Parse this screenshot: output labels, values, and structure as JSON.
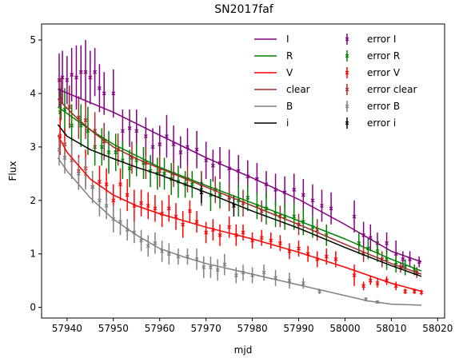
{
  "chart_data": {
    "type": "scatter",
    "title": "SN2017faf",
    "xlabel": "mjd",
    "ylabel": "Flux",
    "xlim": [
      57934.5,
      58021.5
    ],
    "ylim": [
      -0.2,
      5.3
    ],
    "xticks": [
      57940,
      57950,
      57960,
      57970,
      57980,
      57990,
      58000,
      58010,
      58020
    ],
    "yticks": [
      0,
      1,
      2,
      3,
      4,
      5
    ],
    "grid": false,
    "legend": {
      "location": "top-right",
      "columns": 2
    },
    "series": [
      {
        "name": "I",
        "error_name": "error I",
        "color": "#800080",
        "curve": {
          "x": [
            57938,
            57950,
            57960,
            57970,
            57980,
            57990,
            58000,
            58010,
            58016.5
          ],
          "y": [
            4.08,
            3.65,
            3.22,
            2.8,
            2.42,
            2.02,
            1.55,
            1.05,
            0.85
          ]
        },
        "points": {
          "x": [
            57938.3,
            57939.0,
            57940.0,
            57941.0,
            57942.0,
            57943.0,
            57944.0,
            57945.0,
            57946.0,
            57947.0,
            57948.0,
            57950.0,
            57952.0,
            57953.5,
            57955.0,
            57957.0,
            57958.5,
            57960.0,
            57961.5,
            57963.0,
            57964.5,
            57966.0,
            57968.0,
            57970.0,
            57971.5,
            57973.0,
            57975.0,
            57977.0,
            57979.0,
            57981.0,
            57983.0,
            57985.0,
            57987.0,
            57989.0,
            57991.0,
            57993.0,
            57995.0,
            57997.0,
            58002.0,
            58004.0,
            58005.5,
            58007.0,
            58009.0,
            58011.0,
            58012.5,
            58014.0,
            58016.0
          ],
          "y": [
            4.25,
            4.3,
            4.25,
            4.35,
            4.3,
            4.4,
            4.4,
            4.3,
            4.4,
            4.1,
            4.0,
            4.0,
            3.3,
            3.35,
            3.3,
            3.2,
            3.0,
            3.05,
            3.2,
            3.05,
            2.9,
            3.0,
            2.95,
            2.75,
            2.65,
            2.7,
            2.6,
            2.55,
            2.45,
            2.4,
            2.3,
            2.2,
            2.15,
            2.2,
            2.1,
            2.0,
            1.9,
            1.85,
            1.7,
            1.35,
            1.3,
            1.2,
            1.2,
            1.0,
            0.9,
            0.9,
            0.85
          ],
          "err": [
            0.5,
            0.5,
            0.45,
            0.5,
            0.6,
            0.5,
            0.6,
            0.5,
            0.45,
            0.45,
            0.4,
            0.45,
            0.4,
            0.35,
            0.4,
            0.35,
            0.35,
            0.35,
            0.4,
            0.35,
            0.3,
            0.35,
            0.35,
            0.35,
            0.3,
            0.3,
            0.35,
            0.3,
            0.3,
            0.3,
            0.25,
            0.3,
            0.3,
            0.3,
            0.3,
            0.3,
            0.3,
            0.3,
            0.3,
            0.25,
            0.25,
            0.2,
            0.2,
            0.25,
            0.15,
            0.15,
            0.1
          ]
        }
      },
      {
        "name": "R",
        "error_name": "error R",
        "color": "#008000",
        "curve": {
          "x": [
            57938,
            57945,
            57950,
            57960,
            57970,
            57980,
            57990,
            58000,
            58010,
            58016.5
          ],
          "y": [
            3.75,
            3.32,
            3.05,
            2.62,
            2.28,
            1.95,
            1.62,
            1.28,
            0.9,
            0.68
          ]
        },
        "points": {
          "x": [
            57938.5,
            57939.5,
            57941.0,
            57943.0,
            57944.5,
            57946.0,
            57947.5,
            57949.0,
            57950.5,
            57952.0,
            57953.5,
            57955.0,
            57956.5,
            57958.0,
            57959.5,
            57961.0,
            57962.5,
            57964.0,
            57965.5,
            57967.0,
            57969.0,
            57971.0,
            57973.0,
            57975.0,
            57977.0,
            57979.0,
            57981.0,
            57983.0,
            57985.0,
            57987.0,
            57989.0,
            57991.0,
            57993.0,
            57996.0,
            58003.0,
            58005.0,
            58007.0,
            58009.0,
            58011.0,
            58013.0,
            58015.0
          ],
          "y": [
            3.65,
            3.7,
            3.4,
            3.4,
            3.3,
            3.0,
            3.0,
            2.9,
            2.9,
            2.75,
            2.6,
            2.75,
            2.7,
            2.55,
            2.5,
            2.5,
            2.4,
            2.35,
            2.3,
            2.3,
            2.2,
            2.1,
            2.1,
            2.05,
            2.0,
            2.05,
            1.9,
            1.85,
            1.75,
            1.7,
            1.7,
            1.6,
            1.5,
            1.35,
            1.2,
            1.1,
            1.05,
            0.9,
            0.8,
            0.75,
            0.7
          ],
          "err": [
            0.45,
            0.4,
            0.4,
            0.4,
            0.45,
            0.35,
            0.35,
            0.4,
            0.35,
            0.35,
            0.35,
            0.3,
            0.3,
            0.3,
            0.3,
            0.3,
            0.3,
            0.3,
            0.25,
            0.25,
            0.3,
            0.3,
            0.25,
            0.25,
            0.3,
            0.25,
            0.25,
            0.3,
            0.25,
            0.25,
            0.25,
            0.25,
            0.2,
            0.2,
            0.2,
            0.2,
            0.2,
            0.2,
            0.15,
            0.15,
            0.1
          ]
        }
      },
      {
        "name": "V",
        "error_name": "error V",
        "color": "#ff0000",
        "curve": {
          "x": [
            57938,
            57940,
            57945,
            57950,
            57955,
            57960,
            57970,
            57980,
            57990,
            58000,
            58010,
            58016.5
          ],
          "y": [
            3.22,
            2.9,
            2.4,
            2.1,
            1.9,
            1.75,
            1.5,
            1.28,
            1.03,
            0.75,
            0.45,
            0.3
          ]
        },
        "points": {
          "x": [
            57938.5,
            57939.5,
            57941.0,
            57942.5,
            57944.0,
            57945.5,
            57947.0,
            57948.5,
            57950.0,
            57951.5,
            57953.0,
            57954.5,
            57956.0,
            57957.5,
            57959.0,
            57960.5,
            57962.0,
            57963.5,
            57965.0,
            57966.5,
            57968.0,
            57970.0,
            57971.5,
            57973.0,
            57975.0,
            57976.5,
            57978.0,
            57980.0,
            57982.0,
            57984.0,
            57986.0,
            57988.0,
            57990.0,
            57992.0,
            57994.0,
            57996.0,
            57998.0,
            58002.0,
            58004.0,
            58005.5,
            58007.0,
            58009.0,
            58011.0,
            58013.0,
            58015.0,
            58016.5
          ],
          "y": [
            3.2,
            3.05,
            2.75,
            2.55,
            2.6,
            2.25,
            2.35,
            2.3,
            2.0,
            2.3,
            2.1,
            1.9,
            1.95,
            1.9,
            1.85,
            1.75,
            1.85,
            1.7,
            1.55,
            1.8,
            1.6,
            1.4,
            1.45,
            1.35,
            1.5,
            1.35,
            1.4,
            1.25,
            1.3,
            1.25,
            1.2,
            1.05,
            1.1,
            1.0,
            0.9,
            0.95,
            0.9,
            0.6,
            0.4,
            0.5,
            0.45,
            0.5,
            0.4,
            0.3,
            0.3,
            0.28
          ],
          "err": [
            0.35,
            0.3,
            0.3,
            0.3,
            0.35,
            0.3,
            0.3,
            0.3,
            0.3,
            0.3,
            0.3,
            0.3,
            0.25,
            0.25,
            0.25,
            0.25,
            0.25,
            0.25,
            0.25,
            0.2,
            0.2,
            0.2,
            0.2,
            0.2,
            0.2,
            0.2,
            0.15,
            0.15,
            0.15,
            0.15,
            0.15,
            0.15,
            0.15,
            0.15,
            0.15,
            0.15,
            0.15,
            0.2,
            0.08,
            0.08,
            0.08,
            0.08,
            0.08,
            0.05,
            0.05,
            0.05
          ]
        }
      },
      {
        "name": "clear",
        "error_name": "error clear",
        "color": "#a52a2a",
        "curve": {
          "x": [
            57938,
            57942,
            57946,
            57950,
            57955,
            57960,
            57970,
            57980,
            57990,
            58000,
            58010,
            58016.5
          ],
          "y": [
            3.9,
            3.55,
            3.25,
            3.0,
            2.78,
            2.6,
            2.25,
            1.9,
            1.55,
            1.18,
            0.82,
            0.62
          ]
        },
        "points": {
          "x": [
            57938.7,
            57940.5,
            57942.5,
            57944.0,
            57946.0,
            57948.0,
            57951.0,
            57954.0,
            57957.0,
            57960.0,
            57963.0,
            57966.0,
            57969.0,
            57972.0,
            57975.0,
            57978.0,
            57982.0,
            57986.0,
            57990.0,
            57994.0,
            58004.0,
            58008.0,
            58012.0,
            58015.5
          ],
          "y": [
            3.9,
            3.75,
            3.55,
            3.5,
            3.3,
            3.1,
            2.95,
            2.8,
            2.7,
            2.55,
            2.5,
            2.4,
            2.3,
            2.2,
            2.05,
            1.95,
            1.8,
            1.7,
            1.55,
            1.45,
            1.0,
            0.9,
            0.75,
            0.65
          ],
          "err": [
            0.4,
            0.4,
            0.4,
            0.35,
            0.35,
            0.35,
            0.3,
            0.3,
            0.3,
            0.3,
            0.25,
            0.25,
            0.25,
            0.25,
            0.25,
            0.25,
            0.2,
            0.2,
            0.2,
            0.2,
            0.15,
            0.15,
            0.1,
            0.1
          ]
        }
      },
      {
        "name": "B",
        "error_name": "error B",
        "color": "#808080",
        "curve": {
          "x": [
            57938,
            57940,
            57945,
            57950,
            57955,
            57960,
            57965,
            57970,
            57980,
            57990,
            58000,
            58005,
            58010,
            58016.5
          ],
          "y": [
            2.8,
            2.55,
            2.05,
            1.65,
            1.35,
            1.1,
            0.95,
            0.82,
            0.62,
            0.42,
            0.22,
            0.12,
            0.06,
            0.04
          ]
        },
        "points": {
          "x": [
            57938.3,
            57939.5,
            57941.0,
            57942.5,
            57944.0,
            57945.5,
            57947.0,
            57948.5,
            57950.0,
            57951.5,
            57953.0,
            57954.5,
            57956.0,
            57957.5,
            57959.0,
            57960.5,
            57962.0,
            57964.0,
            57966.0,
            57968.0,
            57969.5,
            57971.0,
            57972.5,
            57974.0,
            57976.5,
            57978.0,
            57980.0,
            57982.5,
            57985.0,
            57988.0,
            57991.0,
            57994.5,
            58004.5,
            58007.0
          ],
          "y": [
            2.95,
            2.8,
            2.75,
            2.5,
            2.5,
            2.25,
            2.0,
            1.9,
            1.65,
            1.6,
            1.45,
            1.4,
            1.25,
            1.15,
            1.2,
            1.05,
            1.0,
            0.95,
            0.95,
            0.9,
            0.75,
            0.75,
            0.7,
            0.8,
            0.6,
            0.65,
            0.6,
            0.65,
            0.55,
            0.5,
            0.45,
            0.3,
            0.15,
            0.1
          ],
          "err": [
            0.3,
            0.3,
            0.35,
            0.3,
            0.3,
            0.3,
            0.3,
            0.25,
            0.25,
            0.25,
            0.2,
            0.2,
            0.2,
            0.2,
            0.2,
            0.2,
            0.2,
            0.15,
            0.15,
            0.2,
            0.2,
            0.2,
            0.2,
            0.2,
            0.15,
            0.15,
            0.15,
            0.15,
            0.15,
            0.15,
            0.1,
            0.05,
            0.04,
            0.03
          ]
        }
      },
      {
        "name": "i",
        "error_name": "error i",
        "color": "#000000",
        "curve": {
          "x": [
            57938,
            57940,
            57945,
            57950,
            57955,
            57960,
            57970,
            57980,
            57990,
            58000,
            58010,
            58016.5
          ],
          "y": [
            3.42,
            3.2,
            2.95,
            2.78,
            2.62,
            2.48,
            2.15,
            1.8,
            1.48,
            1.12,
            0.78,
            0.58
          ]
        },
        "points": {
          "x": [
            57969.0,
            57976.0
          ],
          "y": [
            2.15,
            1.9
          ],
          "err": [
            0.2,
            0.2
          ]
        }
      }
    ]
  }
}
